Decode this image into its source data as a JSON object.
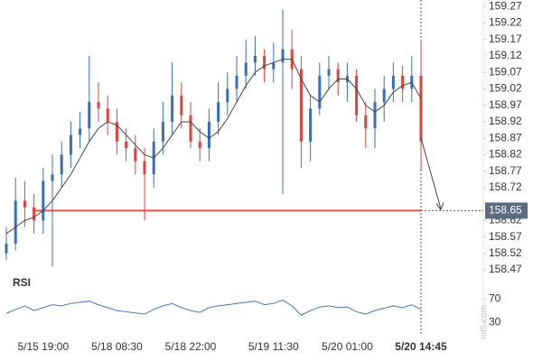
{
  "chart_data": {
    "type": "candlestick",
    "categories": [
      null,
      null,
      null,
      null,
      "5/15 19:00",
      null,
      null,
      null,
      null,
      null,
      null,
      null,
      "5/18 08:30",
      null,
      null,
      null,
      null,
      null,
      null,
      null,
      "5/18 22:00",
      null,
      null,
      null,
      null,
      null,
      null,
      null,
      null,
      "5/19 11:30",
      null,
      null,
      null,
      null,
      null,
      null,
      null,
      "5/20 01:00",
      null,
      null,
      null,
      null,
      null,
      null,
      null,
      "5/20 14:45"
    ],
    "open": [
      158.52,
      158.55,
      158.68,
      158.66,
      158.62,
      158.74,
      158.76,
      158.82,
      158.88,
      158.9,
      158.98,
      158.96,
      158.92,
      158.86,
      158.84,
      158.8,
      158.76,
      158.86,
      158.92,
      159.0,
      158.94,
      158.86,
      158.84,
      158.92,
      158.98,
      159.02,
      159.06,
      159.1,
      159.12,
      159.08,
      159.1,
      159.14,
      159.08,
      158.86,
      158.96,
      159.06,
      159.08,
      159.04,
      159.06,
      158.94,
      158.9,
      158.98,
      159.02,
      159.06,
      159.02,
      159.06
    ],
    "high": [
      158.6,
      158.75,
      158.74,
      158.7,
      158.78,
      158.82,
      158.86,
      158.92,
      158.95,
      159.12,
      159.04,
      159.0,
      158.96,
      158.9,
      158.88,
      158.84,
      158.9,
      158.98,
      159.1,
      159.04,
      158.98,
      158.9,
      158.96,
      159.04,
      159.07,
      159.12,
      159.17,
      159.18,
      159.14,
      159.16,
      159.26,
      159.2,
      159.12,
      159.0,
      159.1,
      159.12,
      159.1,
      159.1,
      159.08,
      158.98,
      159.02,
      159.06,
      159.1,
      159.09,
      159.12,
      159.17
    ],
    "low": [
      158.5,
      158.53,
      158.6,
      158.58,
      158.58,
      158.48,
      158.72,
      158.78,
      158.84,
      158.86,
      158.92,
      158.88,
      158.82,
      158.8,
      158.76,
      158.62,
      158.72,
      158.82,
      158.88,
      158.9,
      158.84,
      158.8,
      158.8,
      158.88,
      158.94,
      158.98,
      159.02,
      159.06,
      159.04,
      159.04,
      158.7,
      159.02,
      158.78,
      158.8,
      158.94,
      159.02,
      159.0,
      158.98,
      158.92,
      158.84,
      158.84,
      158.92,
      158.98,
      158.98,
      158.98,
      158.77
    ],
    "close": [
      158.55,
      158.68,
      158.66,
      158.62,
      158.74,
      158.76,
      158.82,
      158.88,
      158.9,
      158.98,
      158.96,
      158.92,
      158.86,
      158.84,
      158.8,
      158.76,
      158.86,
      158.92,
      159.0,
      158.94,
      158.86,
      158.84,
      158.92,
      158.98,
      159.02,
      159.06,
      159.1,
      159.12,
      159.08,
      159.1,
      159.14,
      159.08,
      158.86,
      158.96,
      159.06,
      159.08,
      159.04,
      159.06,
      158.94,
      158.9,
      158.98,
      159.02,
      159.06,
      159.02,
      159.06,
      158.86
    ],
    "up_color": "#3a6fb5",
    "down_color": "#d9443f",
    "ma": {
      "color": "#444444",
      "values": [
        158.58,
        158.6,
        158.62,
        158.63,
        158.65,
        158.68,
        158.72,
        158.76,
        158.81,
        158.86,
        158.9,
        158.92,
        158.91,
        158.88,
        158.85,
        158.82,
        158.81,
        158.84,
        158.88,
        158.92,
        158.92,
        158.89,
        158.87,
        158.89,
        158.93,
        158.98,
        159.03,
        159.07,
        159.09,
        159.1,
        159.11,
        159.11,
        159.05,
        159.0,
        158.98,
        159.02,
        159.05,
        159.05,
        159.02,
        158.97,
        158.95,
        158.97,
        159.01,
        159.03,
        159.04,
        158.99
      ]
    },
    "ylim": [
      158.44,
      159.29
    ],
    "yticks": [
      159.27,
      159.22,
      159.17,
      159.12,
      159.07,
      159.02,
      158.97,
      158.92,
      158.87,
      158.82,
      158.77,
      158.72,
      158.62,
      158.57,
      158.52,
      158.47
    ],
    "level": {
      "value": 158.65,
      "color": "#e0524f"
    },
    "rsi": {
      "title": "RSI",
      "color": "#4a7ab8",
      "ylim": [
        18,
        87
      ],
      "yticks": [
        70,
        30
      ],
      "values": [
        45,
        52,
        58,
        50,
        55,
        60,
        58,
        62,
        64,
        66,
        60,
        55,
        50,
        48,
        46,
        44,
        52,
        58,
        62,
        55,
        50,
        47,
        55,
        58,
        60,
        62,
        64,
        66,
        60,
        62,
        68,
        58,
        42,
        50,
        56,
        58,
        55,
        56,
        48,
        44,
        50,
        54,
        58,
        55,
        60,
        52
      ]
    },
    "watermark": "mt5.com"
  }
}
